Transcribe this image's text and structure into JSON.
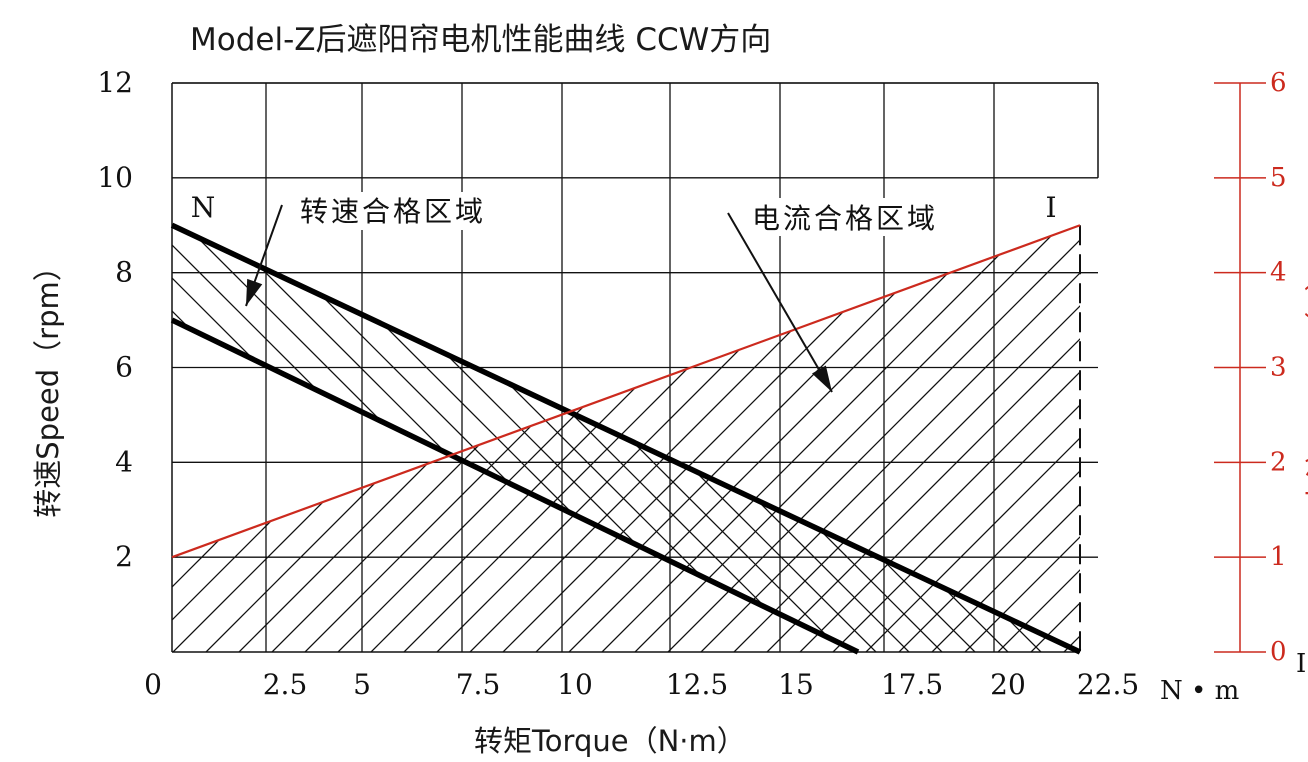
{
  "chart_data": {
    "type": "line",
    "title": "Model-Z后遮阳帘电机性能曲线 CCW方向",
    "xlabel": "转矩Torque（N·m）",
    "ylabel": "转速Speed（rpm）",
    "y2label": "电流Current（A）",
    "x_unit": "N • m",
    "y2_unit": "I",
    "xlim": [
      0,
      22.5
    ],
    "ylim": [
      0,
      12
    ],
    "y2lim": [
      0,
      6
    ],
    "grid": true,
    "x_tick_labels": [
      "0",
      "2.5",
      "5",
      "7.5",
      "10",
      "12.5",
      "15",
      "17.5",
      "20",
      "22.5"
    ],
    "y_tick_labels": [
      "2",
      "4",
      "6",
      "8",
      "10",
      "12"
    ],
    "y2_tick_labels": [
      "0",
      "1",
      "2",
      "3",
      "4",
      "5",
      "6"
    ],
    "series": [
      {
        "name": "N",
        "axis": "left",
        "color": "#000000",
        "x": [
          0,
          22.5
        ],
        "y": [
          9.0,
          0
        ]
      },
      {
        "axis": "left",
        "color": "#000000",
        "x": [
          0,
          17.0
        ],
        "y": [
          7.0,
          0
        ]
      },
      {
        "name": "I",
        "axis": "right",
        "color": "#cc2a1e",
        "x": [
          0,
          22.5
        ],
        "y": [
          1.0,
          4.5
        ]
      }
    ],
    "regions": [
      {
        "label": "转速合格区域",
        "hatch": "backslash",
        "between": [
          "speed-upper",
          "speed-lower"
        ]
      },
      {
        "label": "电流合格区域",
        "hatch": "slash",
        "below": "current-line",
        "x_max": 22.5
      }
    ],
    "annotations": [
      {
        "text": "N",
        "x": 0.5,
        "y": 9.3
      },
      {
        "text": "I",
        "x": 21.4,
        "y": 9.3
      },
      {
        "text": "转速合格区域",
        "x": 3.6,
        "y": 9.2
      },
      {
        "text": "电流合格区域",
        "x": 14.0,
        "y": 9.1
      }
    ]
  }
}
